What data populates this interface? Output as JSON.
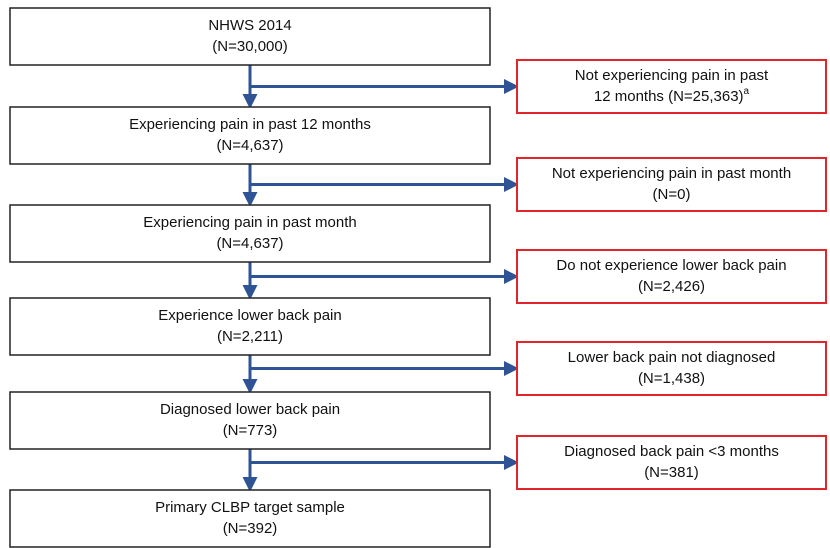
{
  "nodes": [
    {
      "lines": [
        "NHWS 2014",
        "(N=30,000)"
      ]
    },
    {
      "lines": [
        "Experiencing pain in past 12 months",
        "(N=4,637)"
      ]
    },
    {
      "lines": [
        "Experiencing pain in past month",
        "(N=4,637)"
      ]
    },
    {
      "lines": [
        "Experience lower back pain",
        "(N=2,211)"
      ]
    },
    {
      "lines": [
        "Diagnosed lower back pain",
        "(N=773)"
      ]
    },
    {
      "lines": [
        "Primary CLBP target sample",
        "(N=392)"
      ]
    }
  ],
  "exclusions": [
    {
      "lines": [
        "Not experiencing pain in past",
        "12 months (N=25,363)"
      ],
      "note": "a"
    },
    {
      "lines": [
        "Not experiencing pain in past month",
        "(N=0)"
      ]
    },
    {
      "lines": [
        "Do not experience lower back pain",
        "(N=2,426)"
      ]
    },
    {
      "lines": [
        "Lower back pain not diagnosed",
        "(N=1,438)"
      ]
    },
    {
      "lines": [
        "Diagnosed back pain <3 months",
        "(N=381)"
      ]
    }
  ]
}
